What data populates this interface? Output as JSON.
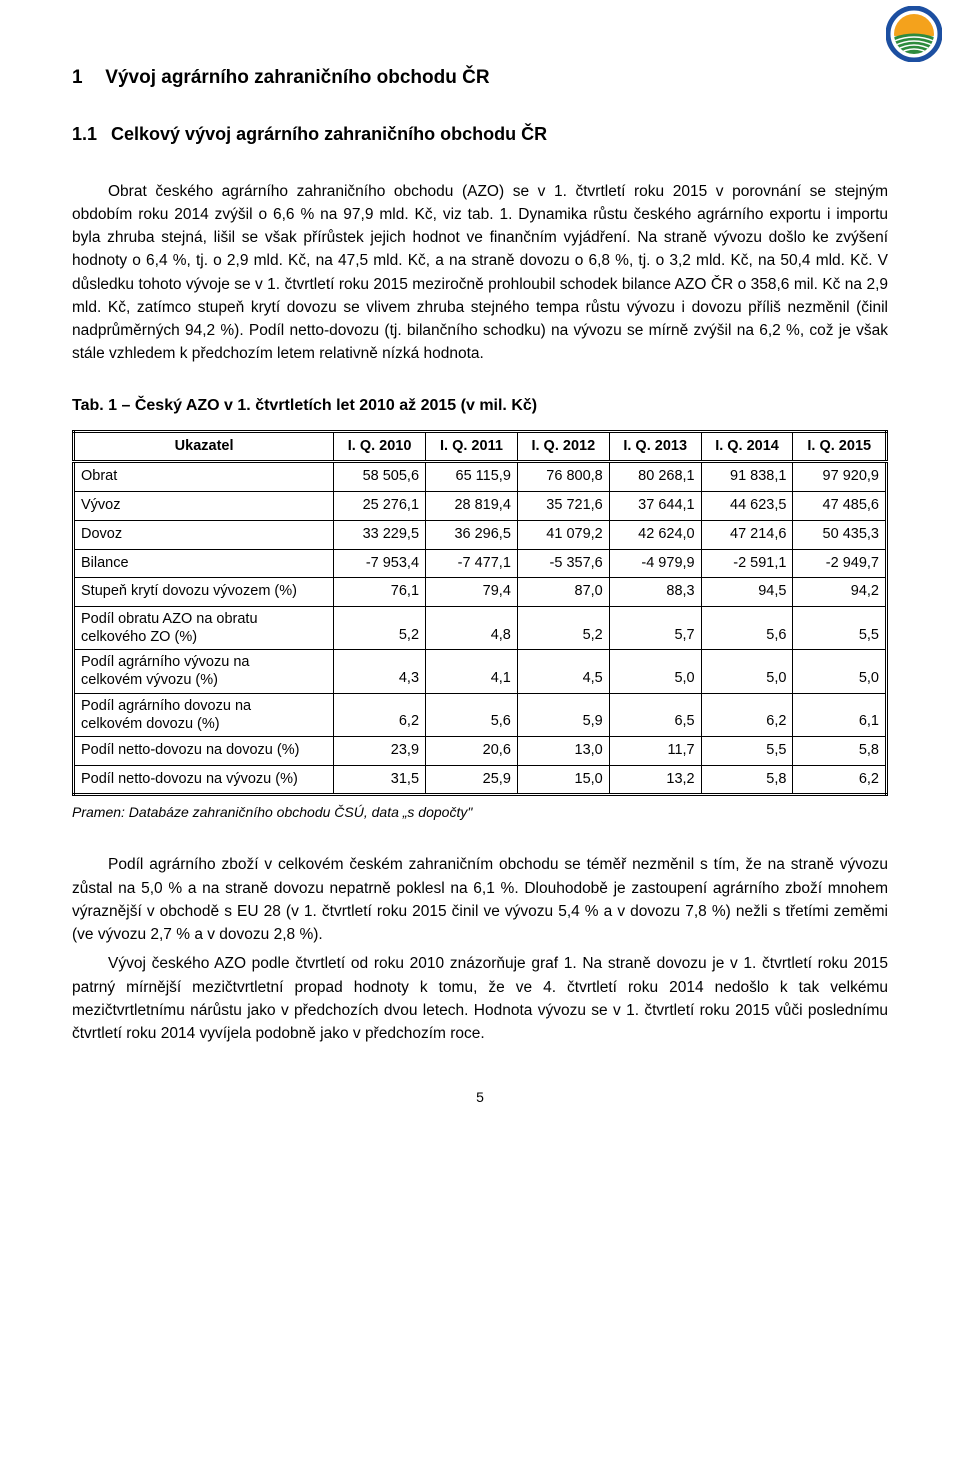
{
  "logo": {
    "outer_ring_color": "#1c4fa1",
    "inner_top_color": "#f4a21c",
    "inner_bottom_color": "#2e8b3d",
    "stripe_color": "#ffffff"
  },
  "heading1": {
    "num": "1",
    "text": "Vývoj agrárního zahraničního obchodu ČR"
  },
  "heading2": {
    "num": "1.1",
    "text": "Celkový vývoj agrárního zahraničního obchodu ČR"
  },
  "para1": "Obrat českého agrárního zahraničního obchodu (AZO) se v 1. čtvrtletí roku 2015 v porovnání se stejným obdobím roku 2014 zvýšil o 6,6 % na 97,9 mld. Kč, viz tab. 1. Dynamika růstu českého agrárního exportu i importu byla zhruba stejná, lišil se však přírůstek jejich hodnot ve finančním vyjádření. Na straně vývozu došlo ke zvýšení hodnoty o 6,4 %, tj. o 2,9 mld. Kč, na 47,5 mld. Kč, a na straně dovozu o 6,8 %, tj. o 3,2 mld. Kč, na 50,4 mld. Kč. V důsledku tohoto vývoje se v 1. čtvrtletí roku 2015 meziročně prohloubil schodek bilance AZO ČR o 358,6 mil. Kč na 2,9 mld. Kč, zatímco stupeň krytí dovozu se vlivem zhruba stejného tempa růstu vývozu i dovozu příliš nezměnil (činil nadprůměrných 94,2 %). Podíl netto-dovozu (tj. bilančního schodku) na vývozu se mírně zvýšil na 6,2 %, což je však stále vzhledem k předchozím letem relativně nízká hodnota.",
  "table": {
    "caption": "Tab. 1 – Český AZO v 1. čtvrtletích let 2010 až 2015 (v mil. Kč)",
    "columns": [
      "Ukazatel",
      "I. Q. 2010",
      "I. Q. 2011",
      "I. Q. 2012",
      "I. Q. 2013",
      "I. Q. 2014",
      "I. Q. 2015"
    ],
    "rows": [
      {
        "label": "Obrat",
        "cells": [
          "58 505,6",
          "65 115,9",
          "76 800,8",
          "80 268,1",
          "91 838,1",
          "97 920,9"
        ]
      },
      {
        "label": "Vývoz",
        "cells": [
          "25 276,1",
          "28 819,4",
          "35 721,6",
          "37 644,1",
          "44 623,5",
          "47 485,6"
        ]
      },
      {
        "label": "Dovoz",
        "cells": [
          "33 229,5",
          "36 296,5",
          "41 079,2",
          "42 624,0",
          "47 214,6",
          "50 435,3"
        ]
      },
      {
        "label": "Bilance",
        "cells": [
          "-7 953,4",
          "-7 477,1",
          "-5 357,6",
          "-4 979,9",
          "-2 591,1",
          "-2 949,7"
        ]
      },
      {
        "label": "Stupeň krytí dovozu vývozem (%)",
        "cells": [
          "76,1",
          "79,4",
          "87,0",
          "88,3",
          "94,5",
          "94,2"
        ]
      },
      {
        "label": "Podíl obratu AZO na obratu\ncelkového ZO (%)",
        "cells": [
          "5,2",
          "4,8",
          "5,2",
          "5,7",
          "5,6",
          "5,5"
        ],
        "twoline": true
      },
      {
        "label": "Podíl agrárního vývozu na\ncelkovém vývozu (%)",
        "cells": [
          "4,3",
          "4,1",
          "4,5",
          "5,0",
          "5,0",
          "5,0"
        ],
        "twoline": true
      },
      {
        "label": "Podíl agrárního dovozu na\ncelkovém dovozu (%)",
        "cells": [
          "6,2",
          "5,6",
          "5,9",
          "6,5",
          "6,2",
          "6,1"
        ],
        "twoline": true
      },
      {
        "label": "Podíl netto-dovozu na dovozu (%)",
        "cells": [
          "23,9",
          "20,6",
          "13,0",
          "11,7",
          "5,5",
          "5,8"
        ]
      },
      {
        "label": "Podíl netto-dovozu na vývozu (%)",
        "cells": [
          "31,5",
          "25,9",
          "15,0",
          "13,2",
          "5,8",
          "6,2"
        ]
      }
    ],
    "col_widths_pct": [
      32,
      11.3,
      11.3,
      11.3,
      11.3,
      11.3,
      11.5
    ],
    "header_bg": "#ffffff",
    "border_color": "#000000"
  },
  "source": "Pramen: Databáze zahraničního obchodu ČSÚ, data „s dopočty\"",
  "para2": "Podíl agrárního zboží v celkovém českém zahraničním obchodu se téměř nezměnil s tím, že na straně vývozu zůstal na 5,0 % a na straně dovozu nepatrně poklesl na 6,1 %. Dlouhodobě je zastoupení agrárního zboží mnohem výraznější v obchodě s EU 28 (v 1. čtvrtletí roku 2015 činil ve vývozu 5,4 % a v dovozu 7,8 %) nežli s třetími zeměmi (ve vývozu 2,7 % a v dovozu 2,8 %).",
  "para3": "Vývoj českého AZO podle čtvrtletí od roku 2010 znázorňuje graf 1. Na straně dovozu je v 1. čtvrtletí roku 2015 patrný mírnější mezičtvrtletní propad hodnoty k tomu, že ve 4. čtvrtletí roku 2014 nedošlo k tak velkému mezičtvrtletnímu nárůstu jako v předchozích dvou letech. Hodnota vývozu se v 1. čtvrtletí roku 2015 vůči poslednímu čtvrtletí roku 2014 vyvíjela podobně jako v předchozím roce.",
  "page_number": "5"
}
